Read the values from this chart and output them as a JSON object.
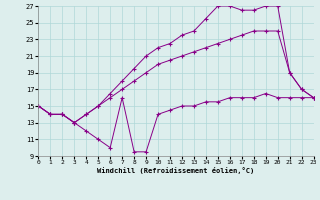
{
  "xlabel": "Windchill (Refroidissement éolien,°C)",
  "ylabel": "",
  "bg_color": "#ddeeed",
  "grid_color": "#b0d8d8",
  "line_color": "#880088",
  "xlim": [
    0,
    23
  ],
  "ylim": [
    9,
    27
  ],
  "xticks": [
    0,
    1,
    2,
    3,
    4,
    5,
    6,
    7,
    8,
    9,
    10,
    11,
    12,
    13,
    14,
    15,
    16,
    17,
    18,
    19,
    20,
    21,
    22,
    23
  ],
  "yticks": [
    9,
    11,
    13,
    15,
    17,
    19,
    21,
    23,
    25,
    27
  ],
  "series": [
    {
      "x": [
        0,
        1,
        2,
        3,
        4,
        5,
        6,
        7,
        8,
        9,
        10,
        11,
        12,
        13,
        14,
        15,
        16,
        17,
        18,
        19,
        20,
        21,
        22,
        23
      ],
      "y": [
        15,
        14,
        14,
        13,
        12,
        11,
        10,
        16,
        9.5,
        9.5,
        14,
        14.5,
        15,
        15,
        15.5,
        15.5,
        16,
        16,
        16,
        16.5,
        16,
        16,
        16,
        16
      ]
    },
    {
      "x": [
        0,
        1,
        2,
        3,
        4,
        5,
        6,
        7,
        8,
        9,
        10,
        11,
        12,
        13,
        14,
        15,
        16,
        17,
        18,
        19,
        20,
        21,
        22,
        23
      ],
      "y": [
        15,
        14,
        14,
        13,
        14,
        15,
        16,
        17,
        18,
        19,
        20,
        20.5,
        21,
        21.5,
        22,
        22.5,
        23,
        23.5,
        24,
        24,
        24,
        19,
        17,
        16
      ]
    },
    {
      "x": [
        0,
        1,
        2,
        3,
        4,
        5,
        6,
        7,
        8,
        9,
        10,
        11,
        12,
        13,
        14,
        15,
        16,
        17,
        18,
        19,
        20,
        21,
        22,
        23
      ],
      "y": [
        15,
        14,
        14,
        13,
        14,
        15,
        16.5,
        18,
        19.5,
        21,
        22,
        22.5,
        23.5,
        24,
        25.5,
        27,
        27,
        26.5,
        26.5,
        27,
        27,
        19,
        17,
        16
      ]
    }
  ]
}
